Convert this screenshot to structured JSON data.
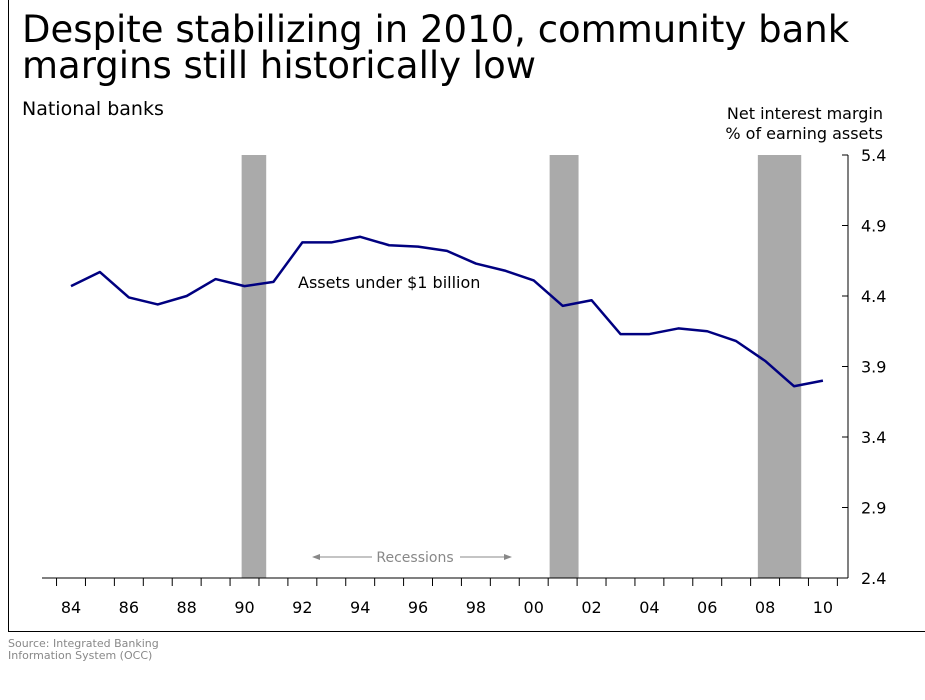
{
  "title": "Despite stabilizing in 2010, community bank margins still historically low",
  "subtitle": "National banks",
  "ylabel_line1": "Net interest margin",
  "ylabel_line2": "% of earning assets",
  "source": "Source:  Integrated Banking\nInformation System (OCC)",
  "chart_data": {
    "type": "line",
    "title": "Despite stabilizing in 2010, community bank margins still historically low",
    "subtitle": "National banks",
    "xlabel": "",
    "ylabel": "Net interest margin % of earning assets",
    "x": [
      1984,
      1985,
      1986,
      1987,
      1988,
      1989,
      1990,
      1991,
      1992,
      1993,
      1994,
      1995,
      1996,
      1997,
      1998,
      1999,
      2000,
      2001,
      2002,
      2003,
      2004,
      2005,
      2006,
      2007,
      2008,
      2009,
      2010
    ],
    "x_tick_labels": [
      "84",
      "86",
      "88",
      "90",
      "92",
      "94",
      "96",
      "98",
      "00",
      "02",
      "04",
      "06",
      "08",
      "10"
    ],
    "x_tick_values": [
      1984,
      1986,
      1988,
      1990,
      1992,
      1994,
      1996,
      1998,
      2000,
      2002,
      2004,
      2006,
      2008,
      2010
    ],
    "series": [
      {
        "name": "Assets under $1 billion",
        "color": "#000080",
        "values": [
          4.47,
          4.57,
          4.39,
          4.34,
          4.4,
          4.52,
          4.47,
          4.5,
          4.78,
          4.78,
          4.82,
          4.76,
          4.75,
          4.72,
          4.63,
          4.58,
          4.51,
          4.33,
          4.37,
          4.13,
          4.13,
          4.17,
          4.15,
          4.08,
          3.94,
          3.76,
          3.8
        ]
      }
    ],
    "recessions": [
      {
        "start": 1989.9,
        "end": 1990.75
      },
      {
        "start": 2000.55,
        "end": 2001.55
      },
      {
        "start": 2007.75,
        "end": 2009.25
      }
    ],
    "recession_label": "Recessions",
    "recession_color": "#aaaaaa",
    "ylim": [
      2.4,
      5.4
    ],
    "yticks": [
      2.4,
      2.9,
      3.4,
      3.9,
      4.4,
      4.9,
      5.4
    ],
    "xlim": [
      1983.5,
      2010.5
    ],
    "grid": false,
    "legend": "none"
  }
}
